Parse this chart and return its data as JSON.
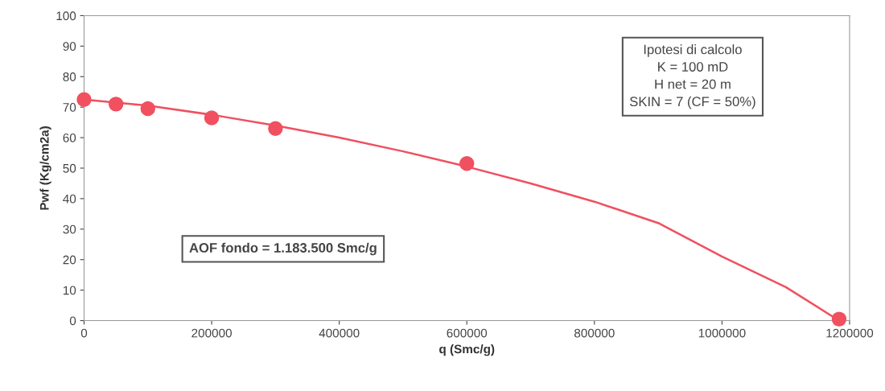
{
  "chart_data": {
    "type": "scatter",
    "xlabel": "q (Smc/g)",
    "ylabel": "Pwf (Kg/cm2a)",
    "xlim": [
      0,
      1200000
    ],
    "xticks": [
      0,
      200000,
      400000,
      600000,
      800000,
      1000000,
      1200000
    ],
    "ylim": [
      0,
      100
    ],
    "yticks": [
      0,
      10,
      20,
      30,
      40,
      50,
      60,
      70,
      80,
      90,
      100
    ],
    "grid": false,
    "legend": false,
    "marker": "circle",
    "series": [
      {
        "type": "line",
        "color": "#f05060",
        "marker": "none",
        "line_style": "solid",
        "x": [
          0,
          100000,
          200000,
          300000,
          400000,
          500000,
          600000,
          700000,
          800000,
          900000,
          1000000,
          1100000,
          1183500
        ],
        "values": [
          72.5,
          70.5,
          67.5,
          64,
          60,
          55.5,
          50.5,
          45,
          39,
          32,
          21,
          11,
          0
        ]
      },
      {
        "color": "#f05060",
        "x": [
          0,
          50000,
          100000,
          200000,
          300000,
          600000,
          1183500
        ],
        "values": [
          72.5,
          71,
          69.5,
          66.5,
          63,
          51.5,
          0.5
        ]
      }
    ],
    "annotations": [
      "Ipotesi di calcolo\nK = 100 mD\nH net = 20 m\nSKIN = 7 (CF = 50%)",
      "AOF fondo = 1.183.500 Smc/g"
    ]
  }
}
